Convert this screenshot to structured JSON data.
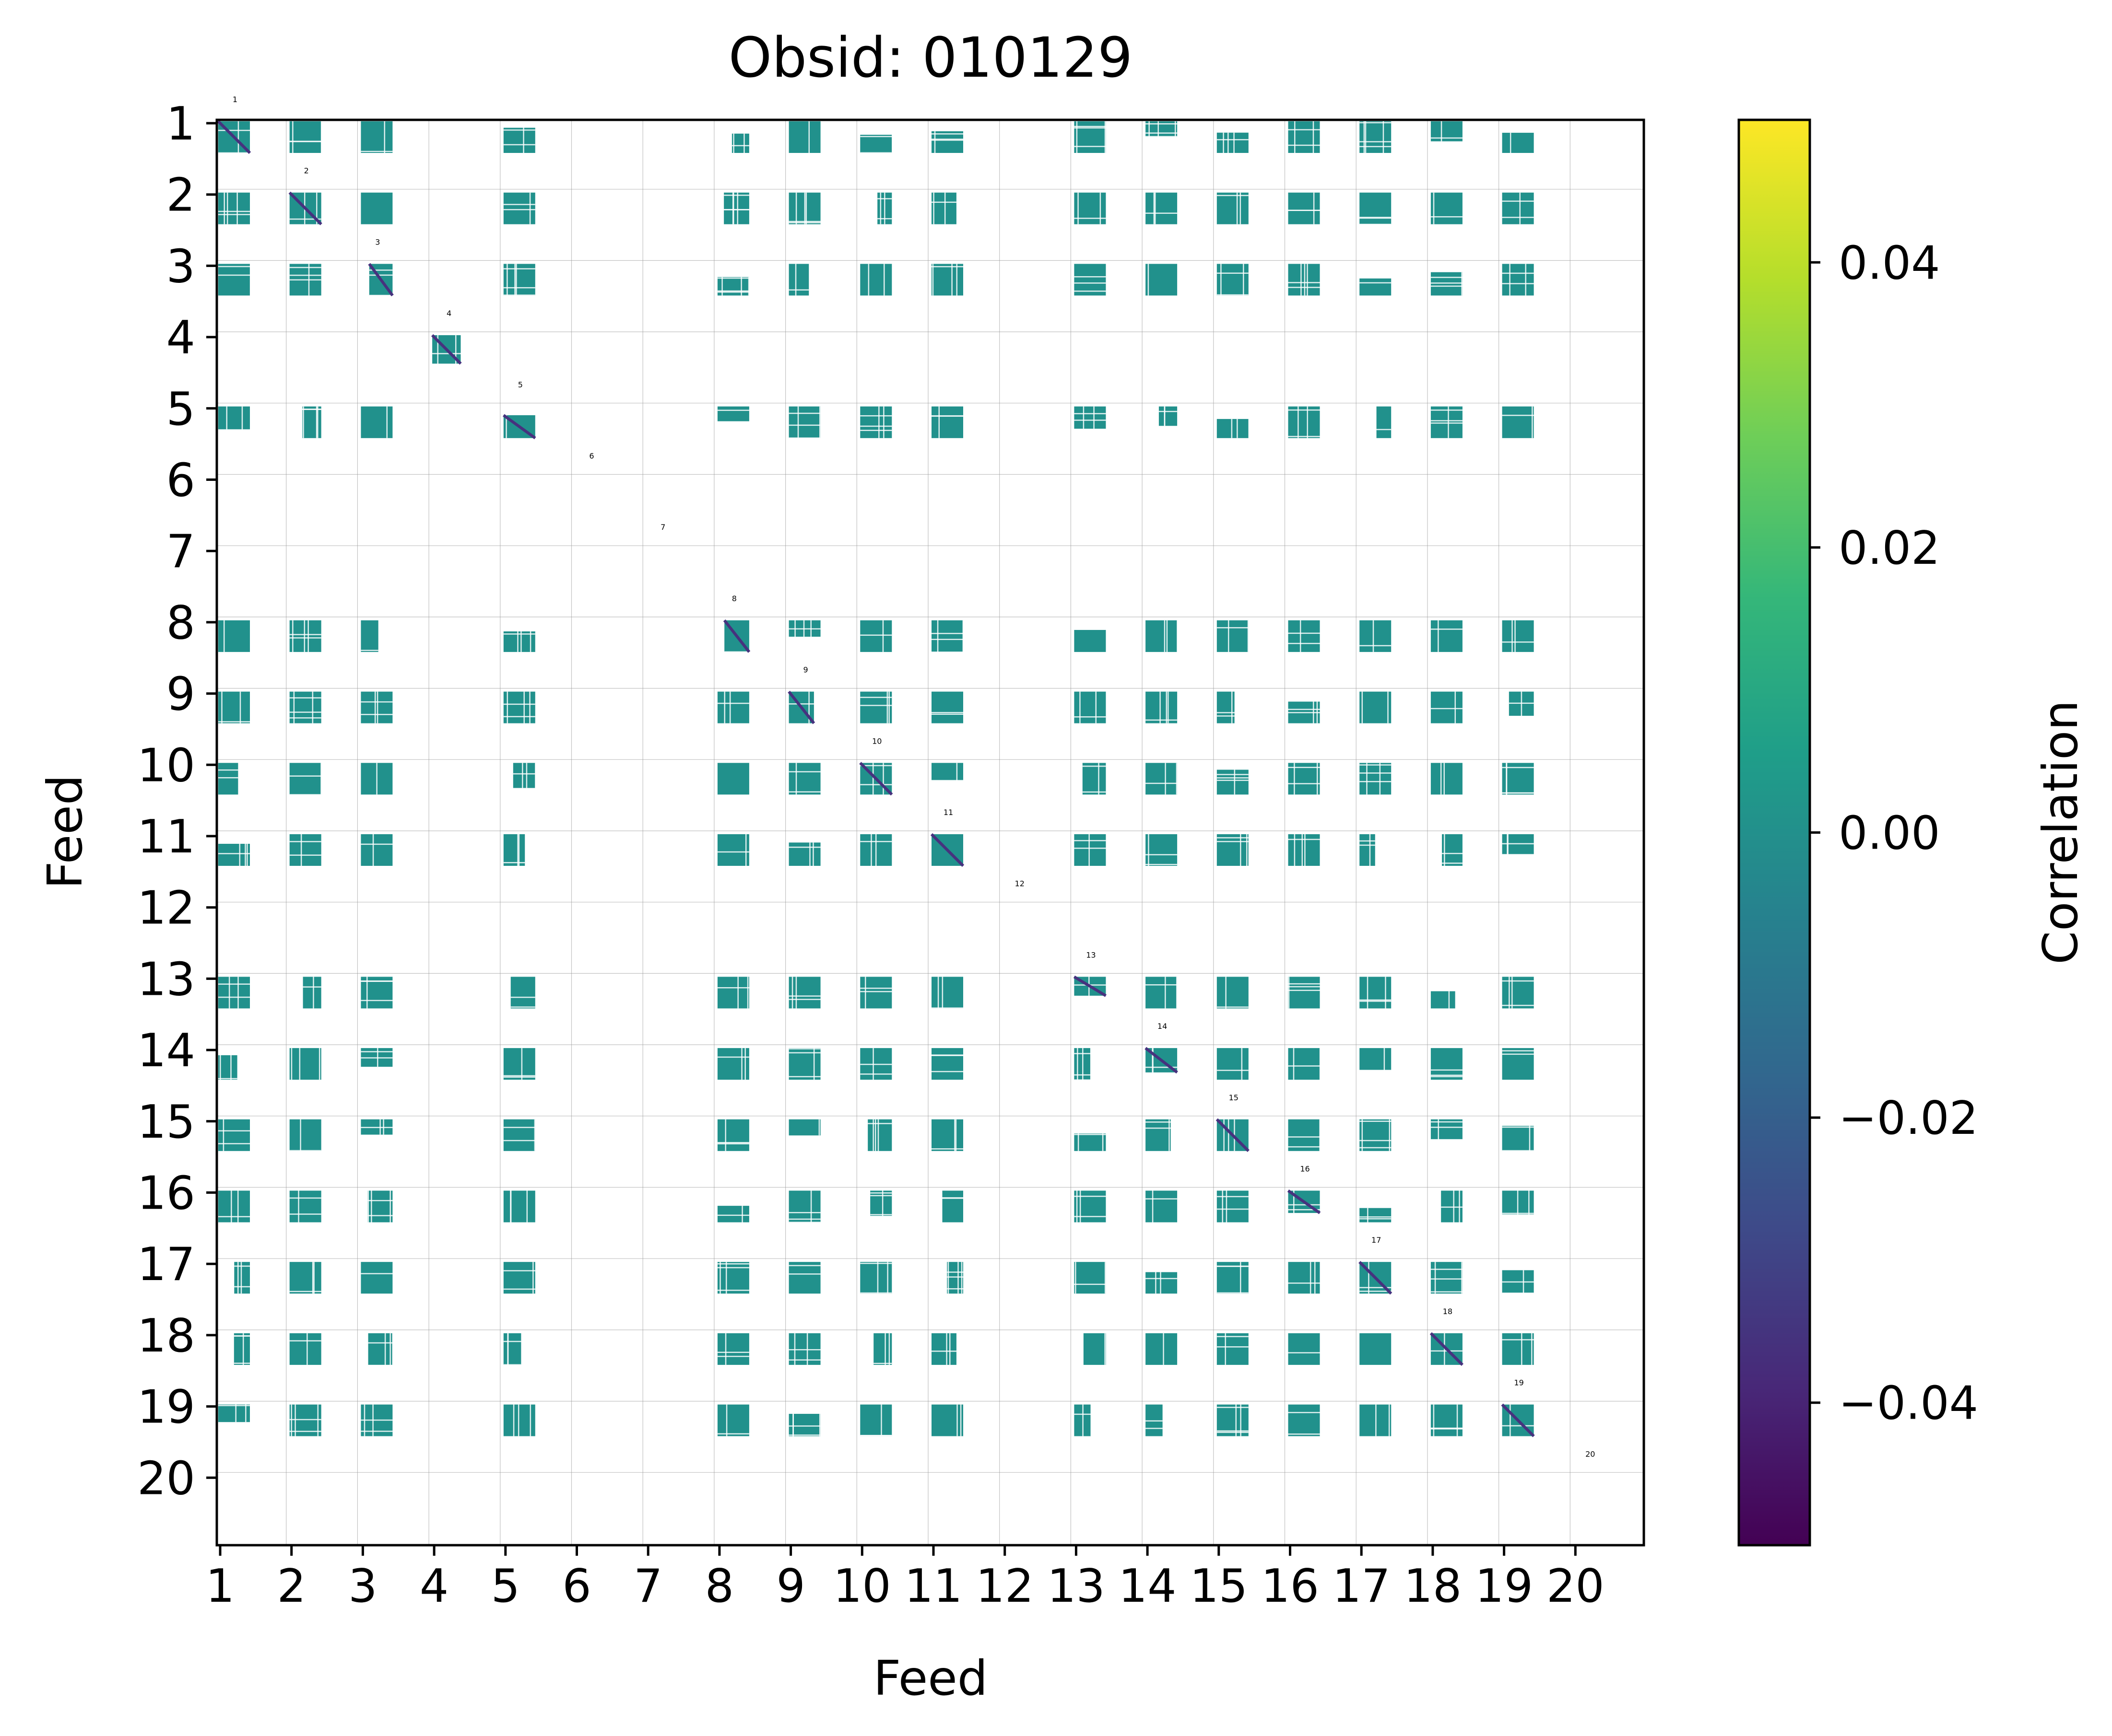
{
  "chart_data": {
    "type": "heatmap",
    "title": "Obsid: 010129",
    "xlabel": "Feed",
    "ylabel": "Feed",
    "x_tick_labels": [
      "1",
      "2",
      "3",
      "4",
      "5",
      "6",
      "7",
      "8",
      "9",
      "10",
      "11",
      "12",
      "13",
      "14",
      "15",
      "16",
      "17",
      "18",
      "19",
      "20"
    ],
    "y_tick_labels": [
      "1",
      "2",
      "3",
      "4",
      "5",
      "6",
      "7",
      "8",
      "9",
      "10",
      "11",
      "12",
      "13",
      "14",
      "15",
      "16",
      "17",
      "18",
      "19",
      "20"
    ],
    "block_labels": [
      "1",
      "2",
      "3",
      "4",
      "5",
      "6",
      "7",
      "8",
      "9",
      "10",
      "11",
      "12",
      "13",
      "14",
      "15",
      "16",
      "17",
      "18",
      "19",
      "20"
    ],
    "active_feeds": [
      1,
      2,
      3,
      5,
      8,
      9,
      10,
      11,
      13,
      14,
      15,
      16,
      17,
      18,
      19
    ],
    "sparse_feeds": [
      4
    ],
    "fill_color": "#21918c",
    "diagonal_color": "#46327e",
    "colorbar": {
      "label": "Correlation",
      "vmin": -0.05,
      "vmax": 0.05,
      "ticks": [
        0.04,
        0.02,
        0.0,
        -0.02,
        -0.04
      ],
      "tick_labels": [
        "0.04",
        "0.02",
        "0.00",
        "−0.02",
        "−0.04"
      ],
      "colormap": "viridis",
      "colormap_stops": [
        "#440154",
        "#482878",
        "#3e4a89",
        "#31688e",
        "#26828e",
        "#1f9e89",
        "#35b779",
        "#6ece58",
        "#b5de2b",
        "#fde725"
      ]
    }
  }
}
